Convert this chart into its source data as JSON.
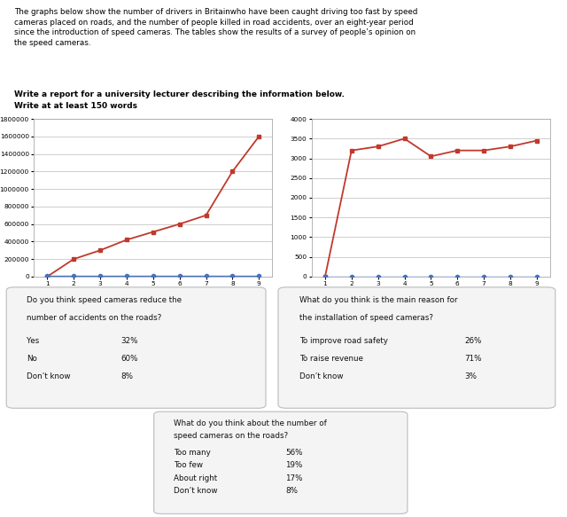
{
  "title_text": "The graphs below show the number of drivers in Britainwho have been caught driving too fast by speed\ncameras placed on roads, and the number of people killed in road accidents, over an eight-year period\nsince the introduction of speed cameras. The tables show the results of a survey of people’s opinion on\nthe speed cameras.",
  "subtitle_text": "Write a report for a university lecturer describing the information below.\nWrite at at least 150 words",
  "graph1_x": [
    1,
    2,
    3,
    4,
    5,
    6,
    7,
    8,
    9
  ],
  "graph1_red": [
    0,
    200000,
    300000,
    420000,
    510000,
    600000,
    700000,
    1200000,
    1600000
  ],
  "graph1_blue": [
    5000,
    5000,
    5000,
    5000,
    5000,
    5000,
    5000,
    5000,
    5000
  ],
  "graph1_ylim": [
    0,
    1800000
  ],
  "graph1_yticks": [
    0,
    200000,
    400000,
    600000,
    800000,
    1000000,
    1200000,
    1400000,
    1600000,
    1800000
  ],
  "graph2_x": [
    1,
    2,
    3,
    4,
    5,
    6,
    7,
    8,
    9
  ],
  "graph2_red": [
    0,
    3200,
    3300,
    3500,
    3050,
    3200,
    3200,
    3300,
    3450
  ],
  "graph2_blue": [
    5,
    5,
    5,
    5,
    5,
    5,
    5,
    5,
    5
  ],
  "graph2_ylim": [
    0,
    4000
  ],
  "graph2_yticks": [
    0,
    500,
    1000,
    1500,
    2000,
    2500,
    3000,
    3500,
    4000
  ],
  "graph2_yticklabels": [
    "0",
    "500",
    "1000",
    "1500",
    "2000",
    "2500",
    "3000",
    "3500",
    "4000"
  ],
  "table1_title": "Do you think speed cameras reduce the\nnumber of accidents on the roads?",
  "table1_rows": [
    [
      "Yes",
      "32%"
    ],
    [
      "No",
      "60%"
    ],
    [
      "Don’t know",
      "8%"
    ]
  ],
  "table2_title": "What do you think is the main reason for\nthe installation of speed cameras?",
  "table2_rows": [
    [
      "To improve road safety",
      "26%"
    ],
    [
      "To raise revenue",
      "71%"
    ],
    [
      "Don’t know",
      "3%"
    ]
  ],
  "table3_title": "What do you think about the number of\nspeed cameras on the roads?",
  "table3_rows": [
    [
      "Too many",
      "56%"
    ],
    [
      "Too few",
      "19%"
    ],
    [
      "About right",
      "17%"
    ],
    [
      "Don’t know",
      "8%"
    ]
  ],
  "bg_color": "#ffffff",
  "line_red": "#c0392b",
  "line_blue": "#4472c4",
  "grid_color": "#bbbbbb",
  "text_color": "#000000",
  "graph_border_color": "#aaaaaa"
}
